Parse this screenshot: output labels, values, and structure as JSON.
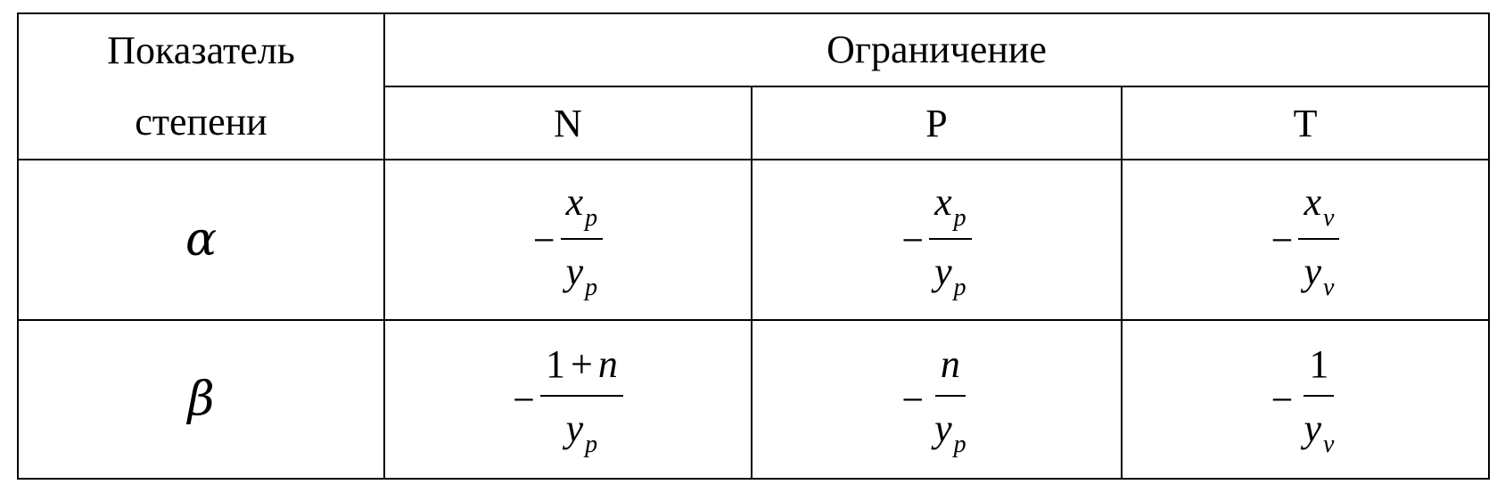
{
  "table": {
    "header": {
      "exponent_label_line1": "Показатель",
      "exponent_label_line2": "степени",
      "constraint_label": "Ограничение",
      "columns": [
        "N",
        "P",
        "T"
      ]
    },
    "rows": [
      {
        "symbol": "α",
        "cells": [
          {
            "sign": "−",
            "num_var": "x",
            "num_sub": "p",
            "den_var": "y",
            "den_sub": "p"
          },
          {
            "sign": "−",
            "num_var": "x",
            "num_sub": "p",
            "den_var": "y",
            "den_sub": "p"
          },
          {
            "sign": "−",
            "num_var": "x",
            "num_sub": "v",
            "den_var": "y",
            "den_sub": "v"
          }
        ]
      },
      {
        "symbol": "β",
        "cells": [
          {
            "sign": "−",
            "num_one": "1",
            "num_plus": "+",
            "num_var": "n",
            "den_var": "y",
            "den_sub": "p"
          },
          {
            "sign": "−",
            "num_var": "n",
            "den_var": "y",
            "den_sub": "p"
          },
          {
            "sign": "−",
            "num_one": "1",
            "den_var": "y",
            "den_sub": "v"
          }
        ]
      }
    ]
  }
}
